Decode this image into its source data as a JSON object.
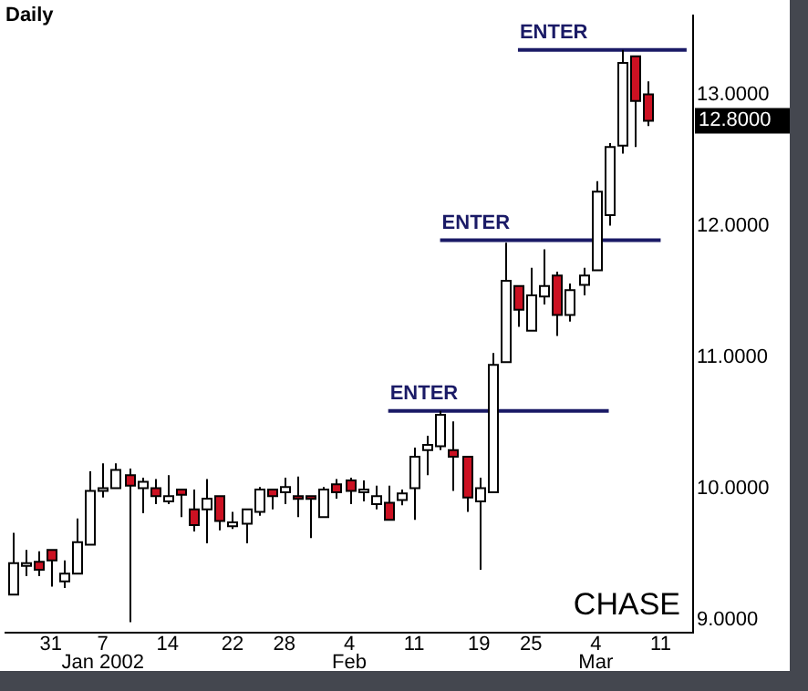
{
  "chart_data": {
    "type": "candlestick",
    "title": "Daily",
    "categories": [
      null,
      null,
      null,
      "31",
      null,
      null,
      null,
      "7\nJan 2002",
      null,
      null,
      null,
      null,
      "14",
      null,
      null,
      null,
      null,
      "22",
      null,
      null,
      null,
      "28",
      null,
      null,
      null,
      null,
      "4\nFeb",
      null,
      null,
      null,
      null,
      "11",
      null,
      null,
      null,
      null,
      "19",
      null,
      null,
      null,
      "25",
      null,
      null,
      null,
      null,
      "4\nMar",
      null,
      null,
      null,
      null,
      "11",
      null,
      null
    ],
    "ohlc": [
      [
        9.19,
        9.66,
        9.19,
        9.43
      ],
      [
        9.43,
        9.53,
        9.33,
        9.43
      ],
      [
        9.44,
        9.52,
        9.33,
        9.38
      ],
      [
        9.53,
        9.53,
        9.25,
        9.45
      ],
      [
        9.29,
        9.45,
        9.24,
        9.35
      ],
      [
        9.35,
        9.77,
        9.35,
        9.59
      ],
      [
        9.57,
        10.13,
        9.57,
        9.98
      ],
      [
        9.98,
        10.19,
        9.93,
        10.0
      ],
      [
        10.0,
        10.19,
        10.0,
        10.14
      ],
      [
        10.1,
        10.15,
        8.98,
        10.02
      ],
      [
        10.0,
        10.08,
        9.81,
        10.05
      ],
      [
        10.0,
        10.07,
        9.88,
        9.94
      ],
      [
        9.9,
        10.1,
        9.88,
        9.94
      ],
      [
        9.99,
        9.99,
        9.78,
        9.95
      ],
      [
        9.84,
        9.99,
        9.67,
        9.72
      ],
      [
        9.84,
        10.07,
        9.58,
        9.92
      ],
      [
        9.94,
        9.94,
        9.68,
        9.75
      ],
      [
        9.71,
        9.82,
        9.69,
        9.74
      ],
      [
        9.73,
        9.84,
        9.58,
        9.84
      ],
      [
        9.82,
        10.01,
        9.79,
        9.99
      ],
      [
        9.99,
        9.99,
        9.84,
        9.94
      ],
      [
        9.97,
        10.08,
        9.88,
        10.01
      ],
      [
        9.94,
        10.09,
        9.78,
        9.92
      ],
      [
        9.94,
        9.94,
        9.62,
        9.92
      ],
      [
        9.78,
        10.01,
        9.78,
        9.99
      ],
      [
        10.03,
        10.07,
        9.92,
        9.97
      ],
      [
        10.06,
        10.08,
        9.88,
        9.98
      ],
      [
        9.99,
        10.06,
        9.9,
        9.99
      ],
      [
        9.88,
        10.02,
        9.84,
        9.94
      ],
      [
        9.89,
        10.02,
        9.76,
        9.76
      ],
      [
        9.91,
        9.99,
        9.87,
        9.96
      ],
      [
        10.0,
        10.31,
        9.76,
        10.24
      ],
      [
        10.29,
        10.4,
        10.1,
        10.33
      ],
      [
        10.32,
        10.59,
        10.29,
        10.56
      ],
      [
        10.29,
        10.51,
        9.98,
        10.24
      ],
      [
        10.24,
        10.24,
        9.82,
        9.93
      ],
      [
        9.9,
        10.08,
        9.38,
        10.0
      ],
      [
        9.97,
        11.03,
        9.97,
        10.94
      ],
      [
        10.96,
        11.87,
        10.96,
        11.58
      ],
      [
        11.54,
        11.54,
        11.23,
        11.36
      ],
      [
        11.2,
        11.68,
        11.2,
        11.47
      ],
      [
        11.46,
        11.82,
        11.4,
        11.54
      ],
      [
        11.62,
        11.65,
        11.16,
        11.32
      ],
      [
        11.32,
        11.56,
        11.27,
        11.51
      ],
      [
        11.55,
        11.68,
        11.47,
        11.62
      ],
      [
        11.66,
        12.34,
        11.66,
        12.26
      ],
      [
        12.08,
        12.63,
        12.0,
        12.6
      ],
      [
        12.61,
        13.34,
        12.55,
        13.24
      ],
      [
        13.29,
        13.29,
        12.6,
        12.95
      ],
      [
        13.0,
        13.1,
        12.76,
        12.8
      ],
      null,
      null,
      null
    ],
    "colors": [
      "#ffffff",
      "#ffffff",
      "#cc1122",
      "#cc1122",
      "#ffffff",
      "#ffffff",
      "#ffffff",
      "#ffffff",
      "#ffffff",
      "#cc1122",
      "#ffffff",
      "#cc1122",
      "#ffffff",
      "#cc1122",
      "#cc1122",
      "#ffffff",
      "#cc1122",
      "#ffffff",
      "#ffffff",
      "#ffffff",
      "#cc1122",
      "#ffffff",
      "#cc1122",
      "#cc1122",
      "#ffffff",
      "#cc1122",
      "#cc1122",
      "#ffffff",
      "#ffffff",
      "#cc1122",
      "#ffffff",
      "#ffffff",
      "#ffffff",
      "#ffffff",
      "#cc1122",
      "#cc1122",
      "#ffffff",
      "#ffffff",
      "#ffffff",
      "#cc1122",
      "#ffffff",
      "#ffffff",
      "#cc1122",
      "#ffffff",
      "#ffffff",
      "#ffffff",
      "#ffffff",
      "#ffffff",
      "#cc1122",
      "#cc1122",
      null,
      null,
      null
    ],
    "series": [
      {
        "type": "line",
        "color": "#1a1a66",
        "values": [
          null,
          null,
          null,
          null,
          null,
          null,
          null,
          null,
          null,
          null,
          null,
          null,
          null,
          null,
          null,
          null,
          null,
          null,
          null,
          null,
          null,
          null,
          null,
          null,
          null,
          null,
          null,
          null,
          null,
          10.59,
          10.59,
          10.59,
          10.59,
          10.59,
          10.59,
          10.59,
          10.59,
          10.59,
          10.59,
          10.59,
          10.59,
          10.59,
          10.59,
          10.59,
          10.59,
          10.59,
          10.59,
          null,
          null,
          null,
          null,
          null,
          null
        ]
      },
      {
        "type": "line",
        "color": "#1a1a66",
        "values": [
          null,
          null,
          null,
          null,
          null,
          null,
          null,
          null,
          null,
          null,
          null,
          null,
          null,
          null,
          null,
          null,
          null,
          null,
          null,
          null,
          null,
          null,
          null,
          null,
          null,
          null,
          null,
          null,
          null,
          null,
          null,
          null,
          null,
          11.89,
          11.89,
          11.89,
          11.89,
          11.89,
          11.89,
          11.89,
          11.89,
          11.89,
          11.89,
          11.89,
          11.89,
          11.89,
          11.89,
          11.89,
          11.89,
          11.89,
          11.89,
          null,
          null
        ]
      },
      {
        "type": "line",
        "color": "#1a1a66",
        "values": [
          null,
          null,
          null,
          null,
          null,
          null,
          null,
          null,
          null,
          null,
          null,
          null,
          null,
          null,
          null,
          null,
          null,
          null,
          null,
          null,
          null,
          null,
          null,
          null,
          null,
          null,
          null,
          null,
          null,
          null,
          null,
          null,
          null,
          null,
          null,
          null,
          null,
          null,
          null,
          13.34,
          13.34,
          13.34,
          13.34,
          13.34,
          13.34,
          13.34,
          13.34,
          13.34,
          13.34,
          13.34,
          13.34,
          13.34,
          13.34
        ]
      }
    ],
    "ylim": [
      8.9,
      13.6
    ],
    "yticks": [
      {
        "value": 9,
        "label": "9.0000"
      },
      {
        "value": 10,
        "label": "10.0000"
      },
      {
        "value": 11,
        "label": "11.0000"
      },
      {
        "value": 12,
        "label": "12.0000"
      },
      {
        "value": 13,
        "label": "13.0000"
      }
    ],
    "annotations": [
      {
        "text": "ENTER",
        "y": 10.59
      },
      {
        "text": "ENTER",
        "y": 11.89
      },
      {
        "text": "ENTER",
        "y": 13.34
      },
      "12.8000",
      "CHASE"
    ]
  }
}
